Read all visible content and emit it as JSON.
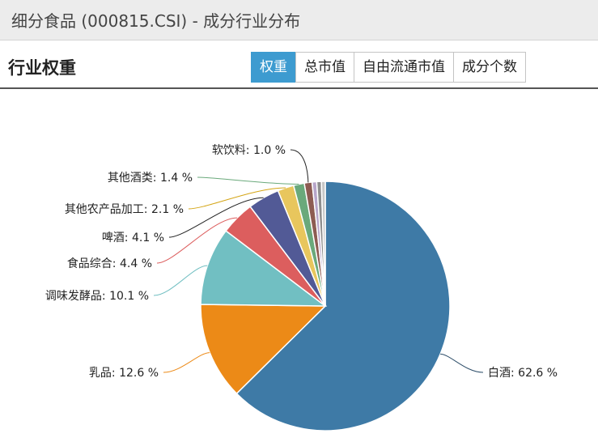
{
  "window": {
    "title": "细分食品 (000815.CSI) - 成分行业分布"
  },
  "header": {
    "title": "行业权重",
    "tabs": [
      {
        "label": "权重",
        "active": true
      },
      {
        "label": "总市值",
        "active": false
      },
      {
        "label": "自由流通市值",
        "active": false
      },
      {
        "label": "成分个数",
        "active": false
      }
    ]
  },
  "chart_data": {
    "type": "pie",
    "title": "",
    "unit": "%",
    "slices": [
      {
        "name": "白酒",
        "value": 62.6,
        "label": "白酒: 62.6 %",
        "color": "#3e7aa6"
      },
      {
        "name": "乳品",
        "value": 12.6,
        "label": "乳品: 12.6 %",
        "color": "#ec8a17"
      },
      {
        "name": "调味发酵品",
        "value": 10.1,
        "label": "调味发酵品: 10.1 %",
        "color": "#71bfc2"
      },
      {
        "name": "食品综合",
        "value": 4.4,
        "label": "食品综合: 4.4 %",
        "color": "#dc5e5e"
      },
      {
        "name": "啤酒",
        "value": 4.1,
        "label": "啤酒: 4.1 %",
        "color": "#525a96"
      },
      {
        "name": "其他农产品加工",
        "value": 2.1,
        "label": "其他农产品加工: 2.1 %",
        "color": "#e8c65d"
      },
      {
        "name": "其他酒类",
        "value": 1.4,
        "label": "其他酒类: 1.4 %",
        "color": "#6aa97b"
      },
      {
        "name": "软饮料",
        "value": 1.0,
        "label": "软饮料: 1.0 %",
        "color": "#8d5b52"
      },
      {
        "name": "",
        "value": 0.6,
        "label": "",
        "color": "#b7a5c9"
      },
      {
        "name": "",
        "value": 0.6,
        "label": "",
        "color": "#8e8e8e"
      },
      {
        "name": "",
        "value": 0.5,
        "label": "",
        "color": "#c7c7c7"
      }
    ]
  }
}
